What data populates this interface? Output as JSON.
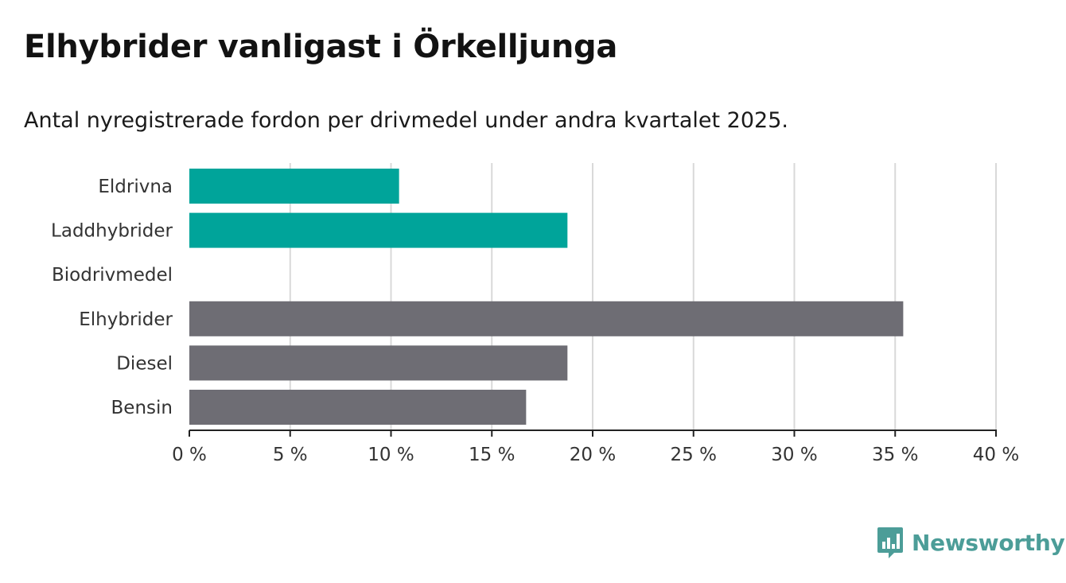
{
  "header": {
    "title": "Elhybrider vanligast i Örkelljunga",
    "subtitle": "Antal nyregistrerade fordon per drivmedel under andra kvartalet 2025."
  },
  "colors": {
    "highlight": "#00a49a",
    "default": "#6e6d74",
    "gridline": "#d9d9d9",
    "axis": "#222222",
    "brand": "#4c9d98"
  },
  "chart_data": {
    "type": "bar",
    "orientation": "horizontal",
    "categories": [
      "Eldrivna",
      "Laddhybrider",
      "Biodrivmedel",
      "Elhybrider",
      "Diesel",
      "Bensin"
    ],
    "values": [
      10.4,
      18.75,
      0,
      35.4,
      18.75,
      16.7
    ],
    "bar_colors": [
      "highlight",
      "highlight",
      "default",
      "default",
      "default",
      "default"
    ],
    "xlim": [
      0,
      40
    ],
    "xticks": [
      0,
      5,
      10,
      15,
      20,
      25,
      30,
      35,
      40
    ],
    "xtick_labels": [
      "0 %",
      "5 %",
      "10 %",
      "15 %",
      "20 %",
      "25 %",
      "30 %",
      "35 %",
      "40 %"
    ],
    "unit": "%",
    "grid": true,
    "title": "Elhybrider vanligast i Örkelljunga",
    "subtitle": "Antal nyregistrerade fordon per drivmedel under andra kvartalet 2025."
  },
  "branding": {
    "logo_text": "Newsworthy",
    "logo_icon": "bar-chart-speech-bubble-icon"
  }
}
